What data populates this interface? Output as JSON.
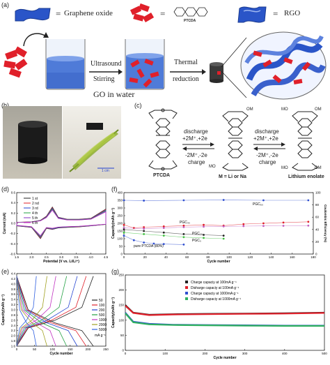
{
  "panel_a": {
    "label": "(a)",
    "legend": {
      "go_eq": "=",
      "go_text": "Graphene oxide",
      "ptcda_eq": "=",
      "ptcda_text": "PTCDA",
      "rgo_eq": "=",
      "rgo_text": "RGO"
    },
    "step1_top": "Ultrasound",
    "step1_bottom": "Stirring",
    "step2_top": "Thermal",
    "step2_bottom": "reduction",
    "beaker_caption": "GO in water"
  },
  "panel_b": {
    "label": "(b)",
    "scale_bar": "1 cm"
  },
  "panel_c": {
    "label": "(c)",
    "arrow1_top1": "discharge",
    "arrow1_top2": "+2M⁺,+2e",
    "arrow1_bottom1": "-2M⁺,-2e",
    "arrow1_bottom2": "charge",
    "arrow2_top1": "discharge",
    "arrow2_top2": "+2M⁺,+2e",
    "arrow2_bottom1": "-2M⁺,-2e",
    "arrow2_bottom2": "charge",
    "mol1_name": "PTCDA",
    "mol2_name": "M = Li or Na",
    "mol3_name": "Lithium enolate",
    "om": "OM",
    "mo": "MO"
  },
  "chart_data": [
    {
      "panel": "(d)",
      "type": "line",
      "xlabel": "Potential (V vs. Li/Li⁺)",
      "ylabel": "Current (mA)",
      "xlim": [
        1.5,
        4.5
      ],
      "ylim": [
        -0.6,
        0.6
      ],
      "xticks": [
        "1.5",
        "2.0",
        "2.5",
        "3.0",
        "3.5",
        "4.0",
        "4.5"
      ],
      "yticks": [
        "0.6",
        "0.4",
        "0.2",
        "0.0",
        "-0.2",
        "-0.4",
        "-0.6"
      ],
      "series": [
        {
          "name": "1 st",
          "color": "#222222"
        },
        {
          "name": "2 nd",
          "color": "#e0202a"
        },
        {
          "name": "3 rd",
          "color": "#2040d0"
        },
        {
          "name": "4 th",
          "color": "#20a040"
        },
        {
          "name": "5 th",
          "color": "#8030c0"
        },
        {
          "name": "6 th",
          "color": "#c030c0"
        }
      ],
      "cv_shape": {
        "x": [
          1.5,
          2.0,
          2.3,
          2.5,
          2.7,
          2.9,
          3.2,
          3.6,
          4.0,
          4.5
        ],
        "upper": [
          0.02,
          0.03,
          0.06,
          0.14,
          0.32,
          0.12,
          0.08,
          0.08,
          0.1,
          0.28
        ],
        "lower": [
          -0.05,
          -0.08,
          -0.3,
          -0.1,
          -0.12,
          -0.09,
          -0.08,
          -0.07,
          -0.05,
          -0.02
        ]
      }
    },
    {
      "panel": "(f)",
      "type": "scatter",
      "xlabel": "Cycle number",
      "ylabel": "Capacity(mAh g⁻¹)",
      "y2label": "Coulombic Efficiency (%)",
      "xlim": [
        0,
        190
      ],
      "ylim": [
        0,
        400
      ],
      "y2lim": [
        0,
        100
      ],
      "xticks": [
        "0",
        "20",
        "40",
        "60",
        "80",
        "100",
        "120",
        "140",
        "160",
        "180"
      ],
      "yticks": [
        "0",
        "50",
        "100",
        "150",
        "200",
        "250",
        "300",
        "350",
        "400"
      ],
      "y2ticks": [
        "0",
        "20",
        "40",
        "60",
        "80",
        "100"
      ],
      "annotations": [
        "PGC₆₀",
        "PGC₄₀",
        "PGC₂₀",
        "PGC₀",
        "pure PTCDA (80%)"
      ],
      "series": [
        {
          "name": "PGC60",
          "color": "#e0202a",
          "x": [
            0,
            10,
            20,
            40,
            60,
            80,
            100,
            120,
            140,
            160,
            185
          ],
          "values": [
            190,
            170,
            175,
            180,
            185,
            190,
            185,
            195,
            200,
            205,
            210
          ]
        },
        {
          "name": "PGC40",
          "color": "#c060c0",
          "x": [
            0,
            20,
            40,
            60,
            80,
            100,
            120,
            140,
            160,
            185
          ],
          "values": [
            170,
            165,
            170,
            175,
            178,
            180,
            182,
            183,
            184,
            185
          ]
        },
        {
          "name": "PGC20",
          "color": "#222222",
          "x": [
            0,
            20,
            40,
            60,
            80,
            100
          ],
          "values": [
            160,
            150,
            140,
            130,
            125,
            120
          ]
        },
        {
          "name": "PGC0",
          "color": "#40c040",
          "x": [
            0,
            20,
            40,
            60,
            80,
            100
          ],
          "values": [
            140,
            130,
            120,
            110,
            105,
            100
          ]
        },
        {
          "name": "pure PTCDA",
          "color": "#3050d0",
          "x": [
            0,
            10,
            20,
            30,
            40,
            60
          ],
          "values": [
            120,
            90,
            75,
            68,
            65,
            62
          ]
        },
        {
          "name": "CE",
          "color": "#3050d0",
          "x": [
            0,
            20,
            60,
            100,
            140,
            185
          ],
          "values": [
            350,
            348,
            350,
            352,
            350,
            350
          ]
        }
      ]
    },
    {
      "panel": "(e)",
      "type": "line",
      "xlabel": "Cycle number",
      "ylabel": "Capacity(mAh g⁻¹)",
      "xlim": [
        0,
        250
      ],
      "ylim": [
        1.6,
        4.4
      ],
      "xticks": [
        "0",
        "50",
        "100",
        "150",
        "200",
        "250"
      ],
      "yticks": [
        "4.4",
        "4.2",
        "4.0",
        "3.8",
        "3.6",
        "3.4",
        "3.2",
        "3.0",
        "2.8",
        "2.6",
        "2.4",
        "2.2",
        "2.0",
        "1.8",
        "1.6"
      ],
      "legend_unit": "mA g⁻¹",
      "series": [
        {
          "name": "50",
          "color": "#222222",
          "capacity": 215
        },
        {
          "name": "100",
          "color": "#e0202a",
          "capacity": 195
        },
        {
          "name": "200",
          "color": "#2040d0",
          "capacity": 170
        },
        {
          "name": "500",
          "color": "#20a040",
          "capacity": 140
        },
        {
          "name": "1000",
          "color": "#c030c0",
          "capacity": 110
        },
        {
          "name": "2000",
          "color": "#a0a020",
          "capacity": 85
        },
        {
          "name": "5000",
          "color": "#3060e0",
          "capacity": 55
        }
      ]
    },
    {
      "panel": "(g)",
      "type": "scatter",
      "xlabel": "Cycle number",
      "ylabel": "Capacity(mAh g⁻¹)",
      "xlim": [
        0,
        500
      ],
      "ylim": [
        0,
        250
      ],
      "xticks": [
        "0",
        "100",
        "200",
        "300",
        "400",
        "500"
      ],
      "yticks": [
        "0",
        "50",
        "100",
        "150",
        "200",
        "250"
      ],
      "series": [
        {
          "name": "Charge capaciy at 100mA g⁻¹",
          "color": "#222222",
          "x": [
            0,
            20,
            60,
            120,
            200,
            300,
            400,
            500
          ],
          "values": [
            150,
            125,
            118,
            120,
            121,
            122,
            123,
            125
          ]
        },
        {
          "name": "Disharge capaciy at 100mA g⁻¹",
          "color": "#e0202a",
          "x": [
            0,
            20,
            60,
            120,
            200,
            300,
            400,
            500
          ],
          "values": [
            148,
            124,
            117,
            119,
            120,
            121,
            122,
            124
          ]
        },
        {
          "name": "Charge capaciy at 1000mA g⁻¹",
          "color": "#3050d0",
          "x": [
            0,
            20,
            60,
            120,
            200,
            300,
            400,
            500
          ],
          "values": [
            125,
            95,
            88,
            85,
            84,
            83,
            82,
            82
          ]
        },
        {
          "name": "Disharge capaciy at 1000mA g⁻¹",
          "color": "#30b060",
          "x": [
            0,
            20,
            60,
            120,
            200,
            300,
            400,
            500
          ],
          "values": [
            123,
            93,
            86,
            84,
            83,
            82,
            81,
            81
          ]
        }
      ]
    }
  ]
}
